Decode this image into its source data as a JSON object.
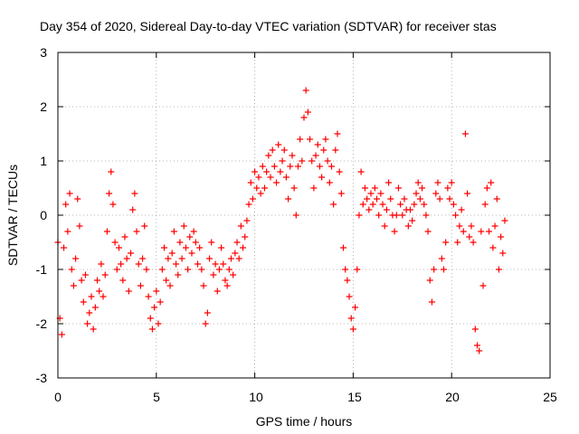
{
  "chart_data": {
    "type": "scatter",
    "title": "Day 354 of 2020, Sidereal Day-to-day VTEC variation (SDTVAR) for receiver stas",
    "xlabel": "GPS time / hours",
    "ylabel": "SDTVAR / TECUs",
    "xlim": [
      0,
      25
    ],
    "ylim": [
      -3,
      3
    ],
    "xticks": [
      "0",
      "5",
      "10",
      "15",
      "20",
      "25"
    ],
    "yticks": [
      "-3",
      "-2",
      "-1",
      "0",
      "1",
      "2",
      "3"
    ],
    "grid": true,
    "marker": "plus",
    "series": [
      {
        "name": "SDTVAR",
        "color": "#ff0000",
        "points": [
          [
            0.0,
            -0.5
          ],
          [
            0.1,
            -1.9
          ],
          [
            0.2,
            -2.2
          ],
          [
            0.3,
            -0.6
          ],
          [
            0.4,
            0.2
          ],
          [
            0.5,
            -0.3
          ],
          [
            0.6,
            0.4
          ],
          [
            0.7,
            -1.0
          ],
          [
            0.8,
            -1.3
          ],
          [
            0.9,
            -0.8
          ],
          [
            1.0,
            0.3
          ],
          [
            1.1,
            -0.2
          ],
          [
            1.2,
            -1.2
          ],
          [
            1.3,
            -1.6
          ],
          [
            1.4,
            -1.1
          ],
          [
            1.5,
            -2.0
          ],
          [
            1.6,
            -1.8
          ],
          [
            1.7,
            -1.5
          ],
          [
            1.8,
            -2.1
          ],
          [
            1.9,
            -1.7
          ],
          [
            2.0,
            -1.2
          ],
          [
            2.1,
            -1.4
          ],
          [
            2.2,
            -0.9
          ],
          [
            2.3,
            -1.5
          ],
          [
            2.4,
            -1.1
          ],
          [
            2.5,
            -0.3
          ],
          [
            2.6,
            0.4
          ],
          [
            2.7,
            0.8
          ],
          [
            2.8,
            0.2
          ],
          [
            2.9,
            -0.5
          ],
          [
            3.0,
            -1.0
          ],
          [
            3.1,
            -0.6
          ],
          [
            3.2,
            -0.9
          ],
          [
            3.3,
            -1.2
          ],
          [
            3.4,
            -0.4
          ],
          [
            3.5,
            -0.8
          ],
          [
            3.6,
            -1.4
          ],
          [
            3.7,
            -0.7
          ],
          [
            3.8,
            0.1
          ],
          [
            3.9,
            0.4
          ],
          [
            4.0,
            -0.3
          ],
          [
            4.1,
            -0.9
          ],
          [
            4.2,
            -1.3
          ],
          [
            4.3,
            -0.8
          ],
          [
            4.4,
            -0.2
          ],
          [
            4.5,
            -1.0
          ],
          [
            4.6,
            -1.5
          ],
          [
            4.7,
            -1.9
          ],
          [
            4.8,
            -2.1
          ],
          [
            4.9,
            -1.7
          ],
          [
            5.0,
            -1.4
          ],
          [
            5.1,
            -2.0
          ],
          [
            5.2,
            -1.6
          ],
          [
            5.3,
            -1.0
          ],
          [
            5.4,
            -0.6
          ],
          [
            5.5,
            -1.2
          ],
          [
            5.6,
            -0.8
          ],
          [
            5.7,
            -1.3
          ],
          [
            5.8,
            -0.7
          ],
          [
            5.9,
            -0.3
          ],
          [
            6.0,
            -0.9
          ],
          [
            6.1,
            -1.1
          ],
          [
            6.2,
            -0.5
          ],
          [
            6.3,
            -0.8
          ],
          [
            6.4,
            -0.2
          ],
          [
            6.5,
            -0.6
          ],
          [
            6.6,
            -1.0
          ],
          [
            6.7,
            -0.4
          ],
          [
            6.8,
            -0.7
          ],
          [
            6.9,
            -0.3
          ],
          [
            7.0,
            -0.5
          ],
          [
            7.1,
            -0.9
          ],
          [
            7.2,
            -0.6
          ],
          [
            7.3,
            -1.0
          ],
          [
            7.4,
            -1.3
          ],
          [
            7.5,
            -2.0
          ],
          [
            7.6,
            -1.8
          ],
          [
            7.7,
            -0.8
          ],
          [
            7.8,
            -0.5
          ],
          [
            7.9,
            -1.1
          ],
          [
            8.0,
            -0.9
          ],
          [
            8.1,
            -1.4
          ],
          [
            8.2,
            -1.0
          ],
          [
            8.3,
            -0.6
          ],
          [
            8.4,
            -0.9
          ],
          [
            8.5,
            -1.2
          ],
          [
            8.6,
            -1.3
          ],
          [
            8.7,
            -1.0
          ],
          [
            8.8,
            -0.8
          ],
          [
            8.9,
            -1.1
          ],
          [
            9.0,
            -0.7
          ],
          [
            9.1,
            -0.5
          ],
          [
            9.2,
            -0.8
          ],
          [
            9.3,
            -0.2
          ],
          [
            9.4,
            -0.6
          ],
          [
            9.5,
            -0.4
          ],
          [
            9.6,
            -0.1
          ],
          [
            9.7,
            0.2
          ],
          [
            9.8,
            0.6
          ],
          [
            9.9,
            0.3
          ],
          [
            10.0,
            0.8
          ],
          [
            10.1,
            0.5
          ],
          [
            10.2,
            0.7
          ],
          [
            10.3,
            0.4
          ],
          [
            10.4,
            0.9
          ],
          [
            10.5,
            0.5
          ],
          [
            10.6,
            0.8
          ],
          [
            10.7,
            1.1
          ],
          [
            10.8,
            0.7
          ],
          [
            10.9,
            1.2
          ],
          [
            11.0,
            0.9
          ],
          [
            11.1,
            0.6
          ],
          [
            11.2,
            1.3
          ],
          [
            11.3,
            0.8
          ],
          [
            11.4,
            1.0
          ],
          [
            11.5,
            1.2
          ],
          [
            11.6,
            0.7
          ],
          [
            11.7,
            0.3
          ],
          [
            11.8,
            0.9
          ],
          [
            11.9,
            1.1
          ],
          [
            12.0,
            0.5
          ],
          [
            12.1,
            0.0
          ],
          [
            12.2,
            0.9
          ],
          [
            12.3,
            1.4
          ],
          [
            12.4,
            1.0
          ],
          [
            12.5,
            1.8
          ],
          [
            12.6,
            2.3
          ],
          [
            12.7,
            1.9
          ],
          [
            12.8,
            1.4
          ],
          [
            12.9,
            1.0
          ],
          [
            13.0,
            0.5
          ],
          [
            13.1,
            1.1
          ],
          [
            13.2,
            1.3
          ],
          [
            13.3,
            0.9
          ],
          [
            13.4,
            0.7
          ],
          [
            13.5,
            1.2
          ],
          [
            13.6,
            1.4
          ],
          [
            13.7,
            1.0
          ],
          [
            13.8,
            0.6
          ],
          [
            13.9,
            0.9
          ],
          [
            14.0,
            0.2
          ],
          [
            14.1,
            1.2
          ],
          [
            14.2,
            1.5
          ],
          [
            14.3,
            0.8
          ],
          [
            14.4,
            0.4
          ],
          [
            14.5,
            -0.6
          ],
          [
            14.6,
            -1.0
          ],
          [
            14.7,
            -1.2
          ],
          [
            14.8,
            -1.5
          ],
          [
            14.9,
            -1.9
          ],
          [
            15.0,
            -2.1
          ],
          [
            15.1,
            -1.7
          ],
          [
            15.2,
            -1.0
          ],
          [
            15.3,
            0.0
          ],
          [
            15.4,
            0.8
          ],
          [
            15.5,
            0.2
          ],
          [
            15.6,
            0.5
          ],
          [
            15.7,
            0.3
          ],
          [
            15.8,
            0.1
          ],
          [
            15.9,
            0.4
          ],
          [
            16.0,
            0.2
          ],
          [
            16.1,
            0.5
          ],
          [
            16.2,
            0.3
          ],
          [
            16.3,
            0.0
          ],
          [
            16.4,
            0.4
          ],
          [
            16.5,
            0.2
          ],
          [
            16.6,
            -0.2
          ],
          [
            16.7,
            0.1
          ],
          [
            16.8,
            0.6
          ],
          [
            16.9,
            0.3
          ],
          [
            17.0,
            0.0
          ],
          [
            17.1,
            -0.3
          ],
          [
            17.2,
            0.0
          ],
          [
            17.3,
            0.5
          ],
          [
            17.4,
            0.2
          ],
          [
            17.5,
            0.0
          ],
          [
            17.6,
            0.3
          ],
          [
            17.7,
            0.1
          ],
          [
            17.8,
            -0.2
          ],
          [
            17.9,
            0.1
          ],
          [
            18.0,
            -0.1
          ],
          [
            18.1,
            0.2
          ],
          [
            18.2,
            0.4
          ],
          [
            18.3,
            0.6
          ],
          [
            18.4,
            0.3
          ],
          [
            18.5,
            0.5
          ],
          [
            18.6,
            0.2
          ],
          [
            18.7,
            0.0
          ],
          [
            18.8,
            -0.3
          ],
          [
            18.9,
            -1.2
          ],
          [
            19.0,
            -1.6
          ],
          [
            19.1,
            -1.0
          ],
          [
            19.2,
            0.4
          ],
          [
            19.3,
            0.6
          ],
          [
            19.4,
            0.3
          ],
          [
            19.5,
            -0.8
          ],
          [
            19.6,
            -1.0
          ],
          [
            19.7,
            -0.5
          ],
          [
            19.8,
            0.5
          ],
          [
            19.9,
            0.3
          ],
          [
            20.0,
            0.6
          ],
          [
            20.1,
            0.2
          ],
          [
            20.2,
            0.0
          ],
          [
            20.3,
            -0.5
          ],
          [
            20.4,
            -0.2
          ],
          [
            20.5,
            0.1
          ],
          [
            20.6,
            -0.3
          ],
          [
            20.7,
            1.5
          ],
          [
            20.8,
            0.4
          ],
          [
            20.9,
            -0.4
          ],
          [
            21.0,
            -0.2
          ],
          [
            21.1,
            -0.5
          ],
          [
            21.2,
            -2.1
          ],
          [
            21.3,
            -2.4
          ],
          [
            21.4,
            -2.5
          ],
          [
            21.5,
            -0.3
          ],
          [
            21.6,
            -1.3
          ],
          [
            21.7,
            0.2
          ],
          [
            21.8,
            0.5
          ],
          [
            21.9,
            -0.3
          ],
          [
            22.0,
            0.6
          ],
          [
            22.1,
            -0.6
          ],
          [
            22.2,
            -0.2
          ],
          [
            22.3,
            0.3
          ],
          [
            22.4,
            -1.0
          ],
          [
            22.5,
            -0.4
          ],
          [
            22.6,
            -0.7
          ],
          [
            22.7,
            -0.1
          ]
        ]
      }
    ]
  }
}
